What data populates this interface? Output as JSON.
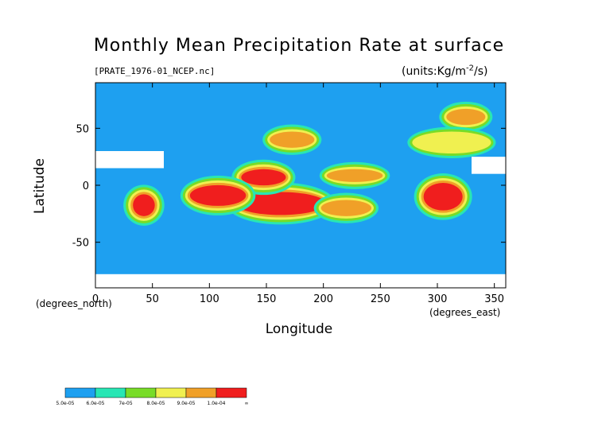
{
  "chart_data": {
    "type": "heatmap",
    "title": "Monthly Mean Precipitation Rate at surface",
    "subtitle": "[PRATE_1976-01_NCEP.nc]",
    "units": "(units:Kg/m^-2/s)",
    "xlabel": "Longitude",
    "ylabel": "Latitude",
    "x_unit_note": "(degrees_east)",
    "y_unit_note": "(degrees_north)",
    "xlim": [
      0,
      360
    ],
    "ylim": [
      -90,
      90
    ],
    "x_ticks": [
      0,
      50,
      100,
      150,
      200,
      250,
      300,
      350
    ],
    "y_ticks": [
      50,
      0,
      -50
    ],
    "colorbar": {
      "labels": [
        "5.0e-05",
        "6.0e-05",
        "7e-05",
        "8.0e-05",
        "9.0e-05",
        "1.0e-04",
        "∞"
      ],
      "colors": [
        "#1ea0f0",
        "#28e6b4",
        "#78dc28",
        "#f0f050",
        "#f0a028",
        "#f01e1e"
      ]
    },
    "regions": [
      {
        "lon": [
          125,
          200
        ],
        "lat": [
          -24,
          -8
        ],
        "level": 6
      },
      {
        "lon": [
          130,
          165
        ],
        "lat": [
          2,
          12
        ],
        "level": 6
      },
      {
        "lon": [
          85,
          130
        ],
        "lat": [
          -16,
          -2
        ],
        "level": 6
      },
      {
        "lon": [
          290,
          320
        ],
        "lat": [
          -20,
          0
        ],
        "level": 6
      },
      {
        "lon": [
          35,
          50
        ],
        "lat": [
          -25,
          -10
        ],
        "level": 6
      },
      {
        "lon": [
          155,
          190
        ],
        "lat": [
          35,
          45
        ],
        "level": 5
      },
      {
        "lon": [
          205,
          250
        ],
        "lat": [
          5,
          12
        ],
        "level": 5
      },
      {
        "lon": [
          200,
          240
        ],
        "lat": [
          -25,
          -15
        ],
        "level": 5
      },
      {
        "lon": [
          310,
          340
        ],
        "lat": [
          55,
          65
        ],
        "level": 5
      },
      {
        "lon": [
          280,
          345
        ],
        "lat": [
          30,
          45
        ],
        "level": 4
      }
    ],
    "missing_regions": [
      {
        "lon": [
          0,
          60
        ],
        "lat": [
          15,
          30
        ]
      },
      {
        "lon": [
          0,
          360
        ],
        "lat": [
          -90,
          -78
        ]
      },
      {
        "lon": [
          330,
          360
        ],
        "lat": [
          10,
          25
        ]
      }
    ]
  }
}
